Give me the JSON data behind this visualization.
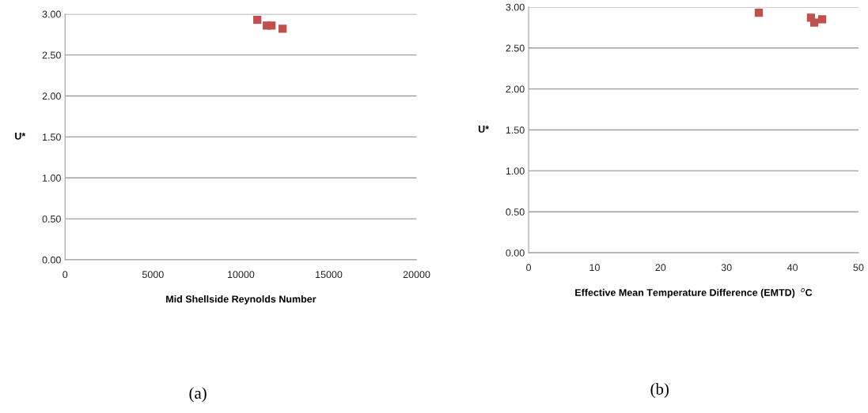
{
  "chart_data": [
    {
      "type": "scatter",
      "xlabel": "Mid Shellside Reynolds Number",
      "ylabel": "U*",
      "x": [
        10935,
        11475,
        11745,
        12375
      ],
      "values": [
        2.93,
        2.86,
        2.86,
        2.82
      ],
      "color": "#c0504d",
      "marker": "square",
      "xlim": [
        0,
        20000
      ],
      "xticks": [
        0,
        5000,
        10000,
        15000,
        20000
      ],
      "ylim": [
        0,
        3
      ],
      "yticks": [
        {
          "value": 0,
          "label": "0.00"
        },
        {
          "value": 0.5,
          "label": "0.50"
        },
        {
          "value": 1,
          "label": "1.00"
        },
        {
          "value": 1.5,
          "label": "1.50"
        },
        {
          "value": 2,
          "label": "2.00"
        },
        {
          "value": 2.5,
          "label": "2.50"
        },
        {
          "value": 3,
          "label": "3.00"
        }
      ],
      "grid": "y",
      "annotations": [
        "(a)"
      ]
    },
    {
      "type": "scatter",
      "xlabel": "Effective Mean Temperature Difference (EMTD)  $^{o}$C",
      "ylabel": "U*",
      "x": [
        34.9,
        42.8,
        43.3,
        44.5
      ],
      "values": [
        2.93,
        2.87,
        2.81,
        2.85
      ],
      "color": "#c0504d",
      "marker": "square",
      "xlim": [
        0,
        50
      ],
      "xticks": [
        0,
        10,
        20,
        30,
        40,
        50
      ],
      "ylim": [
        0,
        3
      ],
      "yticks": [
        {
          "value": 0,
          "label": "0.00"
        },
        {
          "value": 0.5,
          "label": "0.50"
        },
        {
          "value": 1,
          "label": "1.00"
        },
        {
          "value": 1.5,
          "label": "1.50"
        },
        {
          "value": 2,
          "label": "2.00"
        },
        {
          "value": 2.5,
          "label": "2.50"
        },
        {
          "value": 3,
          "label": "3.00"
        }
      ],
      "grid": "y",
      "annotations": [
        "(b)"
      ]
    }
  ]
}
